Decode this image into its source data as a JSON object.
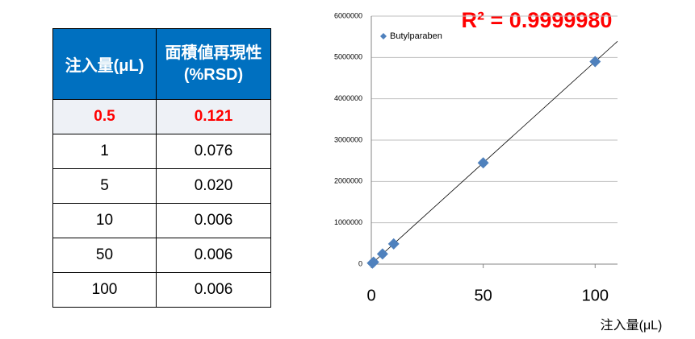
{
  "table": {
    "header": [
      "注入量(μL)",
      "面積値再現性(%RSD)"
    ],
    "rows": [
      [
        "0.5",
        "0.121"
      ],
      [
        "1",
        "0.076"
      ],
      [
        "5",
        "0.020"
      ],
      [
        "10",
        "0.006"
      ],
      [
        "50",
        "0.006"
      ],
      [
        "100",
        "0.006"
      ]
    ],
    "highlight_row": 0,
    "highlight_color": "#ff0000"
  },
  "chart_data": {
    "type": "scatter",
    "annotation": "R² = 0.9999980",
    "x_label": "注入量(μL)",
    "series": [
      {
        "name": "Butylparaben",
        "color": "#4f81bd",
        "x": [
          0.5,
          1,
          5,
          10,
          50,
          100
        ],
        "values": [
          24500,
          49000,
          245000,
          490000,
          2450000,
          4900000
        ]
      }
    ],
    "xlim": [
      0,
      110
    ],
    "xticks": [
      0,
      50,
      100
    ],
    "ylim": [
      0,
      6000000
    ],
    "yticks": [
      0,
      1000000,
      2000000,
      3000000,
      4000000,
      5000000,
      6000000
    ],
    "grid": true,
    "trendline": true,
    "legend": "top-left"
  }
}
